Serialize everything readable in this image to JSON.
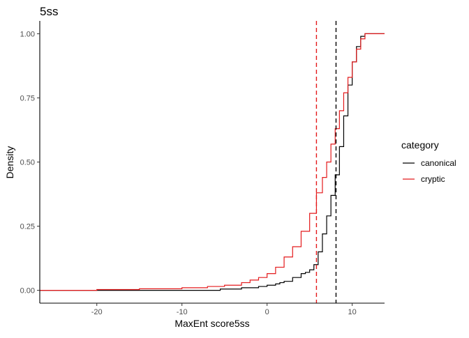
{
  "chart_data": {
    "type": "line",
    "title": "5ss",
    "xlabel": "MaxEnt score5ss",
    "ylabel": "Density",
    "xlim": [
      -26.7,
      13.8
    ],
    "ylim": [
      -0.05,
      1.05
    ],
    "x_ticks": [
      -20,
      -10,
      0,
      10
    ],
    "x_tick_labels": [
      "-20",
      "-10",
      "0",
      "10"
    ],
    "y_ticks": [
      0,
      0.25,
      0.5,
      0.75,
      1.0
    ],
    "y_tick_labels": [
      "0.00",
      "0.25",
      "0.50",
      "0.75",
      "1.00"
    ],
    "grid": false,
    "legend": {
      "title": "category",
      "position": "right",
      "entries": [
        "canonical",
        "cryptic"
      ]
    },
    "series": [
      {
        "name": "canonical",
        "color": "#000000",
        "x": [
          -26.7,
          -6,
          -5.5,
          -3,
          -2,
          -1,
          0,
          1,
          1.5,
          2,
          3,
          4,
          4.5,
          5,
          5.5,
          6,
          6.5,
          7,
          7.5,
          8,
          8.5,
          9,
          9.5,
          10,
          10.5,
          11,
          11.5,
          13.8
        ],
        "y": [
          0,
          0,
          0.005,
          0.01,
          0.01,
          0.015,
          0.02,
          0.025,
          0.03,
          0.035,
          0.05,
          0.065,
          0.07,
          0.08,
          0.1,
          0.15,
          0.22,
          0.29,
          0.37,
          0.45,
          0.56,
          0.68,
          0.8,
          0.89,
          0.95,
          0.99,
          1.0,
          1.0
        ]
      },
      {
        "name": "cryptic",
        "color": "#e41a1c",
        "x": [
          -26.7,
          -20,
          -15,
          -10,
          -7,
          -5,
          -3,
          -2,
          -1,
          0,
          1,
          2,
          3,
          4,
          5,
          5.8,
          6.5,
          7,
          7.5,
          8,
          8.5,
          9,
          9.5,
          10,
          10.5,
          11,
          11.5,
          13.8
        ],
        "y": [
          0,
          0.003,
          0.006,
          0.01,
          0.015,
          0.02,
          0.03,
          0.04,
          0.05,
          0.065,
          0.09,
          0.13,
          0.17,
          0.23,
          0.3,
          0.38,
          0.44,
          0.5,
          0.57,
          0.63,
          0.7,
          0.77,
          0.83,
          0.89,
          0.94,
          0.98,
          1.0,
          1.0
        ]
      }
    ],
    "vlines": [
      {
        "x": 5.8,
        "color": "#e41a1c",
        "style": "dashed"
      },
      {
        "x": 8.1,
        "color": "#000000",
        "style": "dashed"
      }
    ]
  }
}
